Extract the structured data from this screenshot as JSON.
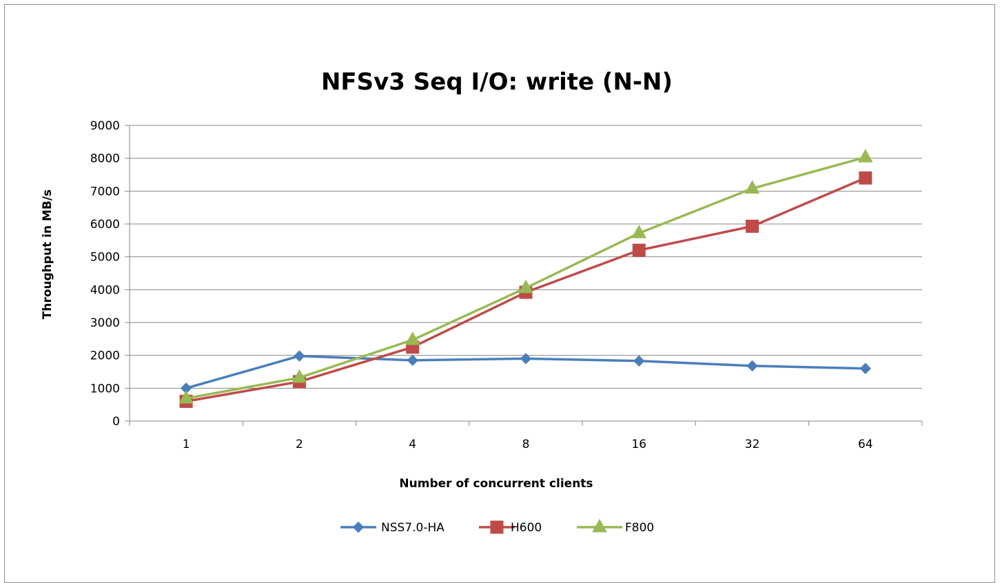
{
  "chart_data": {
    "type": "line",
    "title": "NFSv3 Seq I/O: write (N-N)",
    "xlabel": "Number of concurrent clients",
    "ylabel": "Throughput in MB/s",
    "categories": [
      "1",
      "2",
      "4",
      "8",
      "16",
      "32",
      "64"
    ],
    "ylim": [
      0,
      9000
    ],
    "yticks": [
      "0",
      "1000",
      "2000",
      "3000",
      "4000",
      "5000",
      "6000",
      "7000",
      "8000",
      "9000"
    ],
    "grid": true,
    "legend_position": "bottom",
    "series": [
      {
        "name": "NSS7.0-HA",
        "color": "#4a7ebb",
        "marker": "diamond",
        "values": [
          1000,
          1980,
          1850,
          1900,
          1830,
          1680,
          1600
        ]
      },
      {
        "name": "H600",
        "color": "#be4b48",
        "marker": "square",
        "values": [
          600,
          1200,
          2250,
          3920,
          5200,
          5930,
          7400
        ]
      },
      {
        "name": "F800",
        "color": "#98b954",
        "marker": "triangle",
        "values": [
          690,
          1320,
          2470,
          4050,
          5720,
          7080,
          8030
        ]
      }
    ]
  }
}
